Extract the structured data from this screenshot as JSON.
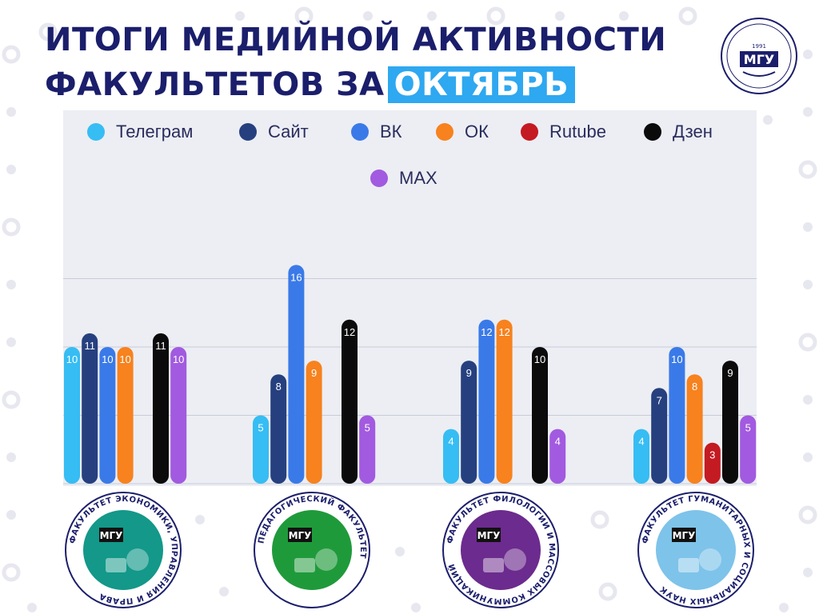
{
  "title": {
    "line1": "ИТОГИ МЕДИЙНОЙ АКТИВНОСТИ",
    "line2": "ФАКУЛЬТЕТОВ ЗА",
    "highlight": "ОКТЯБРЬ"
  },
  "logo": {
    "text": "МГУ",
    "year": "1991"
  },
  "colors": {
    "title": "#1b1e6b",
    "highlight": "#2ea8f0",
    "panel": "#eceef4"
  },
  "chart_data": {
    "type": "bar",
    "title": "",
    "xlabel": "",
    "ylabel": "",
    "ylim": [
      0,
      20
    ],
    "grid": true,
    "legend_position": "top",
    "categories": [
      "Факультет экономики, управления и права",
      "Педагогический факультет",
      "Факультет филологии и массовых коммуникаций",
      "Факультет гуманитарных и социальных наук"
    ],
    "series": [
      {
        "name": "Телеграм",
        "color": "#36bdf3",
        "values": [
          10,
          5,
          4,
          4
        ]
      },
      {
        "name": "Сайт",
        "color": "#26407f",
        "values": [
          11,
          8,
          9,
          7
        ]
      },
      {
        "name": "ВК",
        "color": "#3a7ae8",
        "values": [
          10,
          16,
          12,
          10
        ]
      },
      {
        "name": "ОК",
        "color": "#f7821e",
        "values": [
          10,
          9,
          12,
          8
        ]
      },
      {
        "name": "Rutube",
        "color": "#c41a21",
        "values": [
          null,
          null,
          null,
          3
        ]
      },
      {
        "name": "Дзен",
        "color": "#0b0b0b",
        "values": [
          11,
          12,
          10,
          9
        ]
      },
      {
        "name": "MAX",
        "color": "#a25ae0",
        "values": [
          10,
          5,
          4,
          5
        ]
      }
    ]
  },
  "faculty_badges": [
    {
      "ring_text": "ФАКУЛЬТЕТ ЭКОНОМИКИ, УПРАВЛЕНИЯ И ПРАВА",
      "mark": "МГУ",
      "color": "#139889"
    },
    {
      "ring_text": "ПЕДАГОГИЧЕСКИЙ ФАКУЛЬТЕТ",
      "mark": "МГУ",
      "color": "#1f9a3b"
    },
    {
      "ring_text": "ФАКУЛЬТЕТ ФИЛОЛОГИИ И МАССОВЫХ КОММУНИКАЦИЙ",
      "mark": "МГУ",
      "color": "#6c2b8e"
    },
    {
      "ring_text": "ФАКУЛЬТЕТ ГУМАНИТАРНЫХ И СОЦИАЛЬНЫХ НАУК",
      "mark": "МГУ",
      "color": "#7ec3ea"
    }
  ]
}
